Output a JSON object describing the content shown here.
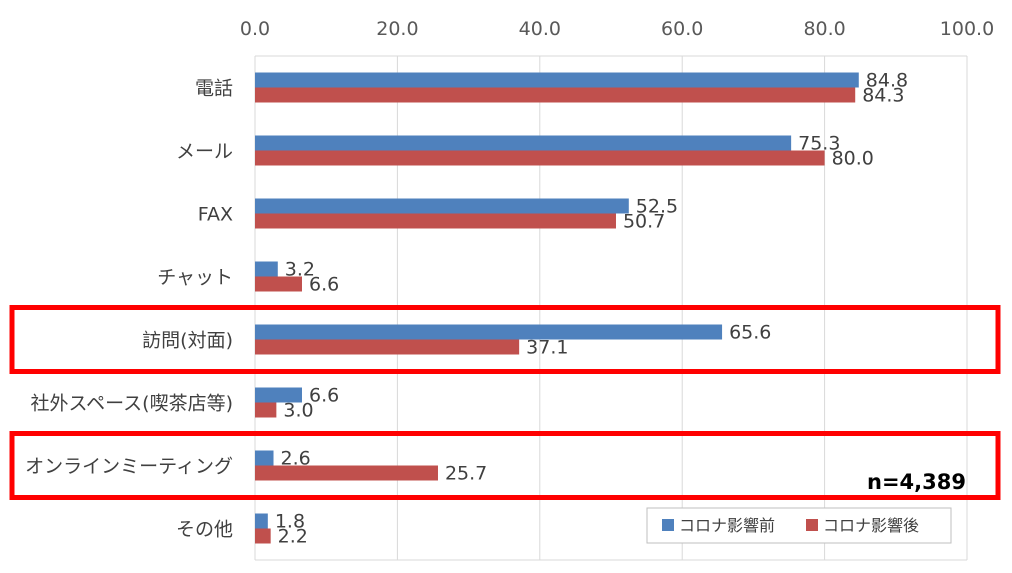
{
  "chart_data": {
    "type": "bar",
    "orientation": "horizontal",
    "categories": [
      "電話",
      "メール",
      "FAX",
      "チャット",
      "訪問(対面)",
      "社外スペース(喫茶店等)",
      "オンラインミーティング",
      "その他"
    ],
    "series": [
      {
        "name": "コロナ影響前",
        "color": "#4f81bd",
        "values": [
          84.8,
          75.3,
          52.5,
          3.2,
          65.6,
          6.6,
          2.6,
          1.8
        ]
      },
      {
        "name": "コロナ影響後",
        "color": "#c0504d",
        "values": [
          84.3,
          80.0,
          50.7,
          6.6,
          37.1,
          3.0,
          25.7,
          2.2
        ]
      }
    ],
    "xlim": [
      0,
      100
    ],
    "xticks": [
      "0.0",
      "20.0",
      "40.0",
      "60.0",
      "80.0",
      "100.0"
    ],
    "grid": true,
    "legend_position": "bottom-right",
    "highlighted_categories": [
      "訪問(対面)",
      "オンラインミーティング"
    ],
    "highlight_color": "#ff0000",
    "annotation": "n=4,389"
  }
}
